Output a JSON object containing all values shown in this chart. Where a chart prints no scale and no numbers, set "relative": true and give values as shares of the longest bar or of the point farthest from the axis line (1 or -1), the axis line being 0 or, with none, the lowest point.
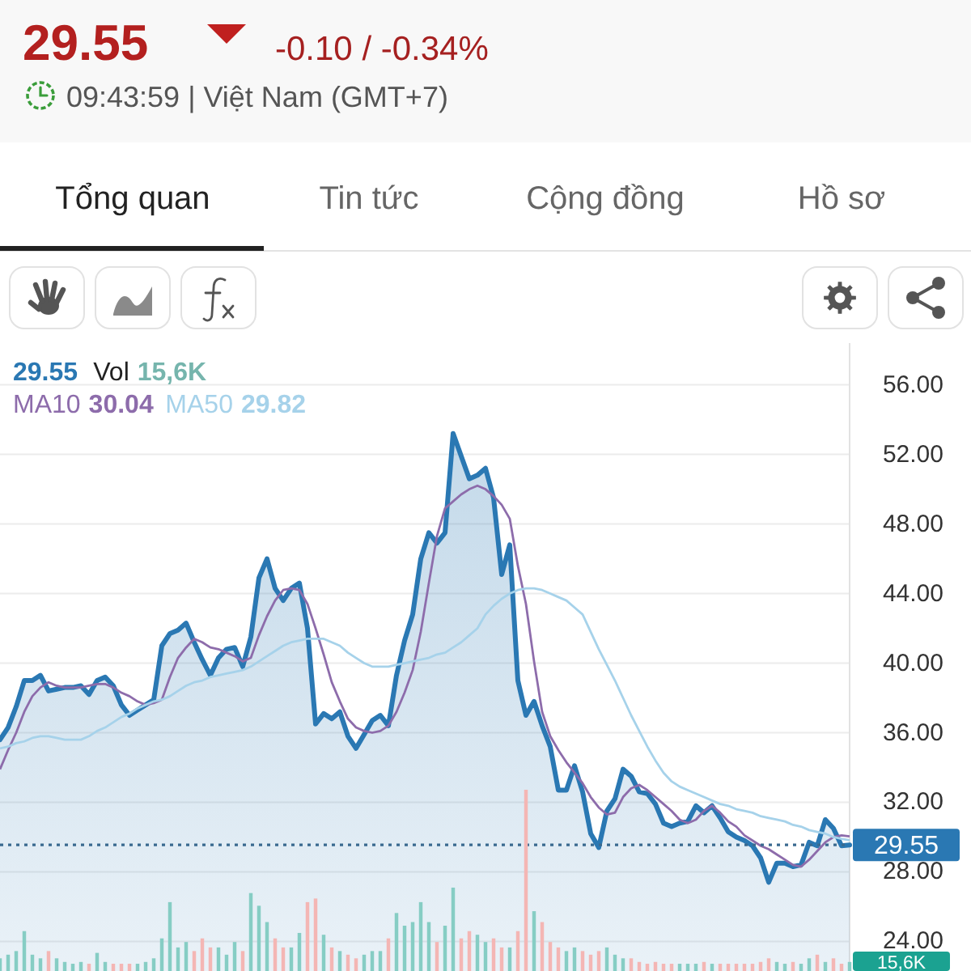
{
  "chart_data": [
    {
      "type": "line",
      "title": "29.55",
      "subtitle": "09:43:59 | Việt Nam (GMT+7)",
      "annotations": [
        "-0.10 / -0.34%",
        "Tổng quan",
        "Tin tức",
        "Cộng đồng",
        "Hồ sơ",
        "29.55",
        "29.55",
        "30.04",
        "29.82"
      ],
      "categories": [
        null,
        null,
        null,
        null,
        null,
        null,
        null,
        null,
        null,
        null,
        null,
        null,
        null,
        null,
        null,
        null,
        null,
        null,
        null,
        null,
        null,
        null,
        null,
        null,
        null,
        null,
        null,
        null,
        null,
        null,
        null,
        null,
        null,
        null,
        null,
        null,
        null,
        null,
        null,
        null,
        null,
        null,
        null,
        null,
        null,
        null,
        null,
        null,
        null,
        null,
        null,
        null,
        null,
        null,
        null,
        null,
        null,
        null,
        null,
        null,
        null,
        null,
        null,
        null,
        null,
        null,
        null,
        null,
        null,
        null,
        null,
        null,
        null,
        null,
        null,
        null,
        null,
        null,
        null,
        null,
        null,
        null,
        null,
        null,
        null,
        null,
        null,
        null,
        null,
        null,
        null,
        null,
        null,
        null,
        null,
        null,
        null,
        null,
        null,
        null,
        null,
        null,
        null,
        null,
        null,
        null
      ],
      "series": [
        {
          "type": "area",
          "color": "#2a78b3",
          "values": [
            35.6,
            36.3,
            37.5,
            39.0,
            39.0,
            39.3,
            38.4,
            38.5,
            38.6,
            38.6,
            38.7,
            38.2,
            39.0,
            39.2,
            38.7,
            37.6,
            37.0,
            37.3,
            37.6,
            37.9,
            41.0,
            41.7,
            41.9,
            42.3,
            41.2,
            40.2,
            39.3,
            40.3,
            40.8,
            40.9,
            39.8,
            41.5,
            44.9,
            46.0,
            44.3,
            43.6,
            44.3,
            44.6,
            42.0,
            36.5,
            37.1,
            36.8,
            37.2,
            35.8,
            35.1,
            35.9,
            36.7,
            37.0,
            36.4,
            39.3,
            41.3,
            42.8,
            46.0,
            47.5,
            46.9,
            47.5,
            53.2,
            51.9,
            50.6,
            50.8,
            51.2,
            49.5,
            45.1,
            46.8,
            39.0,
            37.0,
            37.8,
            36.4,
            35.2,
            32.7,
            32.7,
            34.1,
            32.6,
            30.2,
            29.4,
            31.5,
            32.2,
            33.9,
            33.5,
            32.6,
            32.5,
            31.9,
            30.8,
            30.6,
            30.8,
            30.9,
            31.8,
            31.4,
            31.8,
            31.1,
            30.3,
            30.0,
            29.8,
            29.5,
            28.8,
            27.4,
            28.5,
            28.5,
            28.3,
            28.4,
            29.7,
            29.5,
            31.0,
            30.5,
            29.5,
            29.55
          ]
        },
        {
          "name": "MA10",
          "color": "#8d6cab",
          "values": [
            33.9,
            35.0,
            36.0,
            37.2,
            38.1,
            38.6,
            38.9,
            38.7,
            38.6,
            38.6,
            38.6,
            38.7,
            38.8,
            38.8,
            38.6,
            38.3,
            38.1,
            37.8,
            37.6,
            37.7,
            37.9,
            39.2,
            40.3,
            40.9,
            41.4,
            41.2,
            40.9,
            40.8,
            40.6,
            40.4,
            40.1,
            40.3,
            41.6,
            42.7,
            43.6,
            44.2,
            44.3,
            44.2,
            43.4,
            42.0,
            40.5,
            38.9,
            37.8,
            36.8,
            36.3,
            36.1,
            36.0,
            36.1,
            36.4,
            37.2,
            38.3,
            39.6,
            41.8,
            44.6,
            47.3,
            48.9,
            49.3,
            49.7,
            50.0,
            50.2,
            50.0,
            49.6,
            49.1,
            48.3,
            45.6,
            43.4,
            40.1,
            37.2,
            35.8,
            35.0,
            34.3,
            33.7,
            33.1,
            32.3,
            31.7,
            31.3,
            31.4,
            32.3,
            32.8,
            33.0,
            32.7,
            32.3,
            31.9,
            31.5,
            31.0,
            30.8,
            31.0,
            31.5,
            31.8,
            31.4,
            30.9,
            30.6,
            30.1,
            29.8,
            29.5,
            29.3,
            29.0,
            28.7,
            28.4,
            28.3,
            28.7,
            29.2,
            29.7,
            30.0,
            30.1,
            30.04
          ]
        },
        {
          "name": "MA50",
          "color": "#a6d2ea",
          "values": [
            35.1,
            35.2,
            35.4,
            35.5,
            35.7,
            35.8,
            35.8,
            35.7,
            35.6,
            35.6,
            35.6,
            35.8,
            36.1,
            36.3,
            36.6,
            36.9,
            37.1,
            37.4,
            37.6,
            37.8,
            37.9,
            38.1,
            38.4,
            38.7,
            38.9,
            39.0,
            39.2,
            39.3,
            39.4,
            39.5,
            39.6,
            39.8,
            40.1,
            40.4,
            40.7,
            41.0,
            41.2,
            41.3,
            41.4,
            41.4,
            41.4,
            41.2,
            41.0,
            40.6,
            40.3,
            40.0,
            39.8,
            39.8,
            39.8,
            39.9,
            40.0,
            40.1,
            40.2,
            40.3,
            40.5,
            40.6,
            40.9,
            41.2,
            41.6,
            42.0,
            42.8,
            43.3,
            43.7,
            44.0,
            44.2,
            44.3,
            44.3,
            44.2,
            44.0,
            43.8,
            43.6,
            43.2,
            42.8,
            41.8,
            40.8,
            39.9,
            39.0,
            38.0,
            37.0,
            36.1,
            35.2,
            34.4,
            33.7,
            33.2,
            32.9,
            32.7,
            32.5,
            32.3,
            32.1,
            31.9,
            31.8,
            31.6,
            31.5,
            31.4,
            31.2,
            31.1,
            31.0,
            30.9,
            30.7,
            30.6,
            30.4,
            30.3,
            30.2,
            30.0,
            29.9,
            29.82
          ]
        }
      ],
      "ylim": [
        22.3,
        58.4
      ],
      "yticks": [
        {
          "value": 24,
          "label": "24.00"
        },
        {
          "value": 28,
          "label": "28.00"
        },
        {
          "value": 32,
          "label": "32.00"
        },
        {
          "value": 36,
          "label": "36.00"
        },
        {
          "value": 40,
          "label": "40.00"
        },
        {
          "value": 44,
          "label": "44.00"
        },
        {
          "value": 48,
          "label": "48.00"
        },
        {
          "value": 52,
          "label": "52.00"
        },
        {
          "value": 56,
          "label": "56.00"
        }
      ],
      "tick_labels": "y",
      "grid": "y",
      "legend": "top left",
      "ref_lines": [
        {
          "axis": "y",
          "value": 29.55,
          "color": "#3a6a90",
          "line_style": "dotted"
        }
      ]
    },
    {
      "type": "bar",
      "relative": true,
      "legend": "top left",
      "annotations": [
        "15,6K",
        "15,6K"
      ],
      "categories": [
        null,
        null,
        null,
        null,
        null,
        null,
        null,
        null,
        null,
        null,
        null,
        null,
        null,
        null,
        null,
        null,
        null,
        null,
        null,
        null,
        null,
        null,
        null,
        null,
        null,
        null,
        null,
        null,
        null,
        null,
        null,
        null,
        null,
        null,
        null,
        null,
        null,
        null,
        null,
        null,
        null,
        null,
        null,
        null,
        null,
        null,
        null,
        null,
        null,
        null,
        null,
        null,
        null,
        null,
        null,
        null,
        null,
        null,
        null,
        null,
        null,
        null,
        null,
        null,
        null,
        null,
        null,
        null,
        null,
        null,
        null,
        null,
        null,
        null,
        null,
        null,
        null,
        null,
        null,
        null,
        null,
        null,
        null,
        null,
        null,
        null,
        null,
        null,
        null,
        null,
        null,
        null,
        null,
        null,
        null,
        null,
        null,
        null,
        null,
        null,
        null,
        null,
        null,
        null,
        null,
        null
      ],
      "series": [
        {
          "name": "Vol",
          "values": [
            0.07,
            0.09,
            0.11,
            0.22,
            0.09,
            0.07,
            0.11,
            0.07,
            0.05,
            0.04,
            0.05,
            0.04,
            0.1,
            0.05,
            0.04,
            0.04,
            0.04,
            0.04,
            0.05,
            0.07,
            0.18,
            0.38,
            0.13,
            0.16,
            0.11,
            0.18,
            0.13,
            0.13,
            0.09,
            0.16,
            0.11,
            0.43,
            0.36,
            0.27,
            0.18,
            0.13,
            0.13,
            0.21,
            0.38,
            0.4,
            0.2,
            0.13,
            0.11,
            0.09,
            0.07,
            0.09,
            0.11,
            0.11,
            0.18,
            0.32,
            0.25,
            0.27,
            0.38,
            0.27,
            0.16,
            0.25,
            0.46,
            0.18,
            0.22,
            0.2,
            0.16,
            0.18,
            0.13,
            0.13,
            0.22,
            1,
            0.33,
            0.27,
            0.16,
            0.13,
            0.11,
            0.13,
            0.11,
            0.09,
            0.11,
            0.13,
            0.09,
            0.07,
            0.07,
            0.05,
            0.04,
            0.05,
            0.04,
            0.04,
            0.04,
            0.04,
            0.04,
            0.05,
            0.04,
            0.04,
            0.04,
            0.04,
            0.04,
            0.04,
            0.05,
            0.07,
            0.05,
            0.04,
            0.05,
            0.04,
            0.07,
            0.09,
            0.05,
            0.07,
            0.04,
            0.05
          ],
          "colors": [
            "#86cdc4",
            "#86cdc4",
            "#86cdc4",
            "#86cdc4",
            "#86cdc4",
            "#86cdc4",
            "#f4b6b4",
            "#86cdc4",
            "#86cdc4",
            "#86cdc4",
            "#86cdc4",
            "#f4b6b4",
            "#86cdc4",
            "#86cdc4",
            "#f4b6b4",
            "#f4b6b4",
            "#f4b6b4",
            "#86cdc4",
            "#86cdc4",
            "#86cdc4",
            "#86cdc4",
            "#86cdc4",
            "#86cdc4",
            "#86cdc4",
            "#f4b6b4",
            "#f4b6b4",
            "#f4b6b4",
            "#86cdc4",
            "#86cdc4",
            "#86cdc4",
            "#f4b6b4",
            "#86cdc4",
            "#86cdc4",
            "#86cdc4",
            "#f4b6b4",
            "#f4b6b4",
            "#86cdc4",
            "#86cdc4",
            "#f4b6b4",
            "#f4b6b4",
            "#86cdc4",
            "#f4b6b4",
            "#86cdc4",
            "#f4b6b4",
            "#f4b6b4",
            "#86cdc4",
            "#86cdc4",
            "#86cdc4",
            "#f4b6b4",
            "#86cdc4",
            "#86cdc4",
            "#86cdc4",
            "#86cdc4",
            "#86cdc4",
            "#f4b6b4",
            "#86cdc4",
            "#86cdc4",
            "#f4b6b4",
            "#f4b6b4",
            "#86cdc4",
            "#86cdc4",
            "#f4b6b4",
            "#f4b6b4",
            "#86cdc4",
            "#f4b6b4",
            "#f4b6b4",
            "#86cdc4",
            "#f4b6b4",
            "#f4b6b4",
            "#f4b6b4",
            "#86cdc4",
            "#86cdc4",
            "#f4b6b4",
            "#f4b6b4",
            "#f4b6b4",
            "#86cdc4",
            "#86cdc4",
            "#86cdc4",
            "#f4b6b4",
            "#f4b6b4",
            "#f4b6b4",
            "#f4b6b4",
            "#f4b6b4",
            "#f4b6b4",
            "#86cdc4",
            "#86cdc4",
            "#86cdc4",
            "#f4b6b4",
            "#86cdc4",
            "#f4b6b4",
            "#f4b6b4",
            "#f4b6b4",
            "#f4b6b4",
            "#f4b6b4",
            "#f4b6b4",
            "#f4b6b4",
            "#86cdc4",
            "#86cdc4",
            "#f4b6b4",
            "#86cdc4",
            "#86cdc4",
            "#f4b6b4",
            "#86cdc4",
            "#f4b6b4",
            "#f4b6b4",
            "#86cdc4"
          ]
        }
      ]
    }
  ]
}
